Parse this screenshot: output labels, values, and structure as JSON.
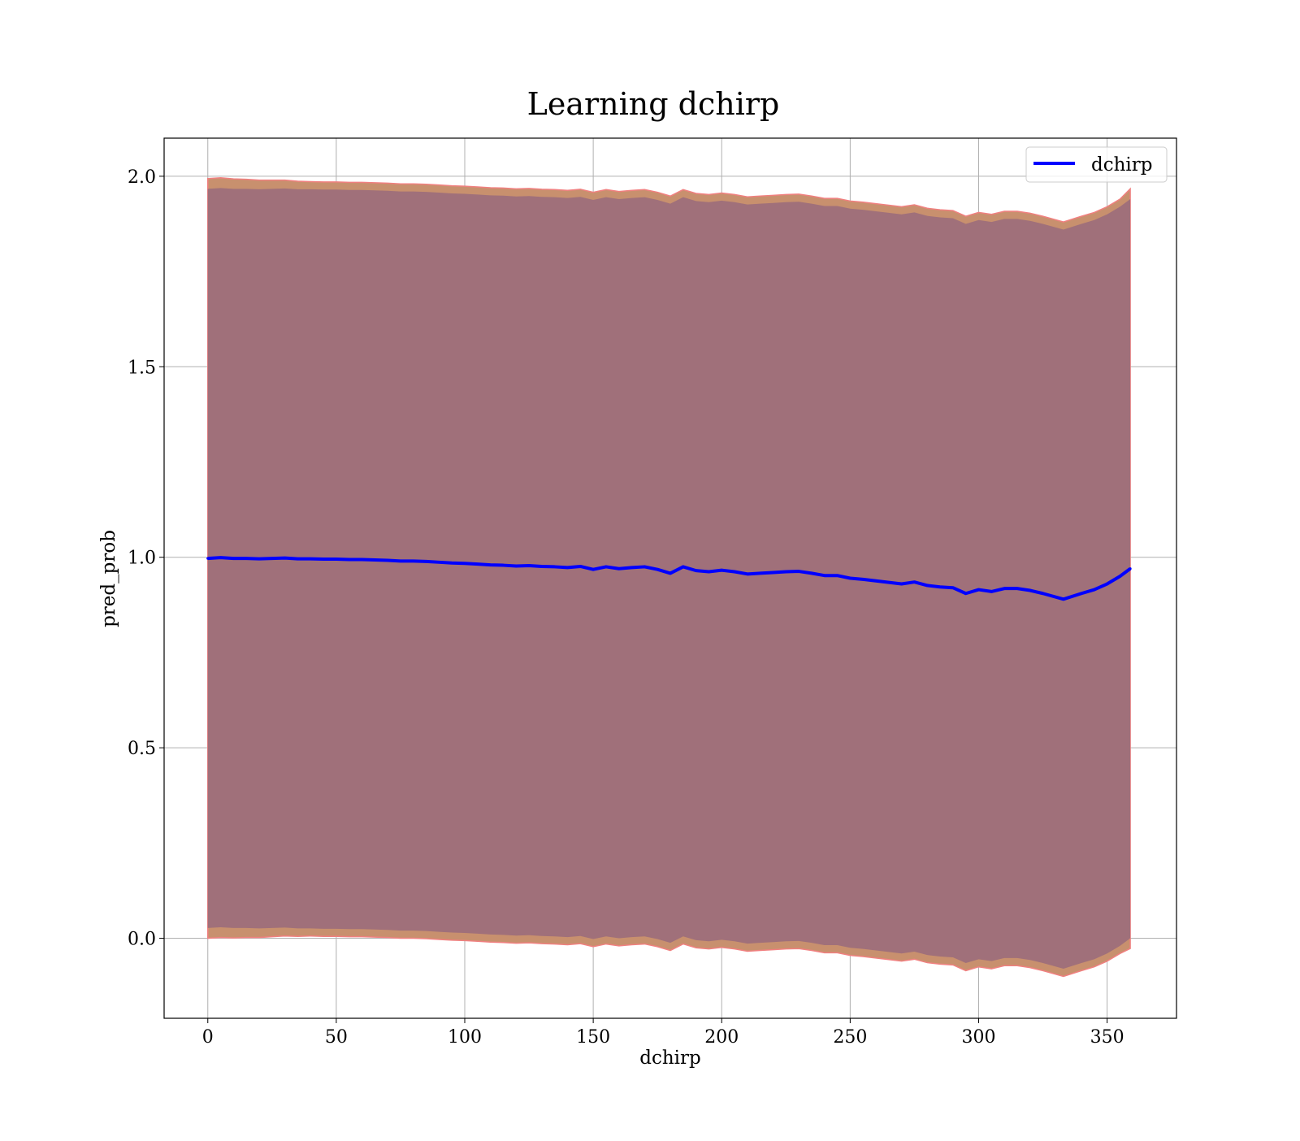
{
  "chart_data": {
    "type": "line",
    "title": "Learning dchirp",
    "xlabel": "dchirp",
    "ylabel": "pred_prob",
    "xlim": [
      -17,
      377
    ],
    "ylim": [
      -0.21,
      2.1
    ],
    "xticks": [
      0,
      50,
      100,
      150,
      200,
      250,
      300,
      350
    ],
    "yticks": [
      0.0,
      0.5,
      1.0,
      1.5,
      2.0
    ],
    "xtick_labels": [
      "0",
      "50",
      "100",
      "150",
      "200",
      "250",
      "300",
      "350"
    ],
    "ytick_labels": [
      "0.0",
      "0.5",
      "1.0",
      "1.5",
      "2.0"
    ],
    "grid": true,
    "legend": {
      "position": "top-right",
      "entries": [
        "dchirp"
      ]
    },
    "colors": {
      "line": "#0000ff",
      "outer_band": "#c8906e",
      "outer_band_edge": "#f08080",
      "inner_band": "#a0707a"
    },
    "series": [
      {
        "name": "dchirp",
        "x": [
          0,
          5,
          10,
          15,
          20,
          25,
          30,
          35,
          40,
          45,
          50,
          55,
          60,
          65,
          70,
          75,
          80,
          85,
          90,
          95,
          100,
          105,
          110,
          115,
          120,
          125,
          130,
          135,
          140,
          145,
          150,
          155,
          160,
          165,
          170,
          175,
          180,
          185,
          190,
          195,
          200,
          205,
          210,
          215,
          220,
          225,
          230,
          235,
          240,
          245,
          250,
          255,
          260,
          265,
          270,
          275,
          280,
          285,
          290,
          295,
          300,
          305,
          310,
          315,
          320,
          325,
          333,
          340,
          345,
          350,
          355,
          359
        ],
        "y": [
          0.997,
          0.999,
          0.997,
          0.997,
          0.996,
          0.997,
          0.998,
          0.996,
          0.996,
          0.995,
          0.995,
          0.994,
          0.994,
          0.993,
          0.992,
          0.99,
          0.99,
          0.989,
          0.987,
          0.985,
          0.984,
          0.982,
          0.98,
          0.979,
          0.977,
          0.978,
          0.976,
          0.975,
          0.973,
          0.976,
          0.968,
          0.975,
          0.97,
          0.973,
          0.975,
          0.968,
          0.958,
          0.975,
          0.965,
          0.962,
          0.966,
          0.962,
          0.956,
          0.958,
          0.96,
          0.962,
          0.963,
          0.958,
          0.952,
          0.952,
          0.945,
          0.942,
          0.938,
          0.934,
          0.93,
          0.935,
          0.926,
          0.922,
          0.92,
          0.905,
          0.915,
          0.91,
          0.918,
          0.918,
          0.913,
          0.905,
          0.89,
          0.905,
          0.915,
          0.93,
          0.95,
          0.97
        ],
        "band_outer": [
          0.997,
          0.997,
          0.996,
          0.995,
          0.994,
          0.993,
          0.992,
          0.991,
          0.99,
          0.99,
          0.99,
          0.99,
          0.99,
          0.99,
          0.99,
          0.99,
          0.99,
          0.99,
          0.99,
          0.99,
          0.99,
          0.99,
          0.99,
          0.99,
          0.99,
          0.99,
          0.99,
          0.99,
          0.99,
          0.99,
          0.99,
          0.99,
          0.99,
          0.99,
          0.99,
          0.99,
          0.99,
          0.99,
          0.99,
          0.99,
          0.99,
          0.99,
          0.99,
          0.99,
          0.99,
          0.99,
          0.99,
          0.99,
          0.99,
          0.99,
          0.99,
          0.99,
          0.99,
          0.99,
          0.99,
          0.99,
          0.99,
          0.99,
          0.99,
          0.99,
          0.99,
          0.99,
          0.99,
          0.99,
          0.99,
          0.99,
          0.99,
          0.99,
          0.99,
          0.99,
          0.99,
          0.997
        ],
        "band_inner": [
          0.97,
          0.97,
          0.97,
          0.97,
          0.97,
          0.97,
          0.97,
          0.97,
          0.97,
          0.97,
          0.97,
          0.97,
          0.97,
          0.97,
          0.97,
          0.97,
          0.97,
          0.97,
          0.97,
          0.97,
          0.97,
          0.97,
          0.97,
          0.97,
          0.97,
          0.97,
          0.97,
          0.97,
          0.97,
          0.97,
          0.97,
          0.97,
          0.97,
          0.97,
          0.97,
          0.97,
          0.97,
          0.97,
          0.97,
          0.97,
          0.97,
          0.97,
          0.97,
          0.97,
          0.97,
          0.97,
          0.97,
          0.97,
          0.97,
          0.97,
          0.97,
          0.97,
          0.97,
          0.97,
          0.97,
          0.97,
          0.97,
          0.97,
          0.97,
          0.97,
          0.97,
          0.97,
          0.97,
          0.97,
          0.97,
          0.97,
          0.97,
          0.97,
          0.97,
          0.97,
          0.97,
          0.97
        ]
      }
    ]
  }
}
